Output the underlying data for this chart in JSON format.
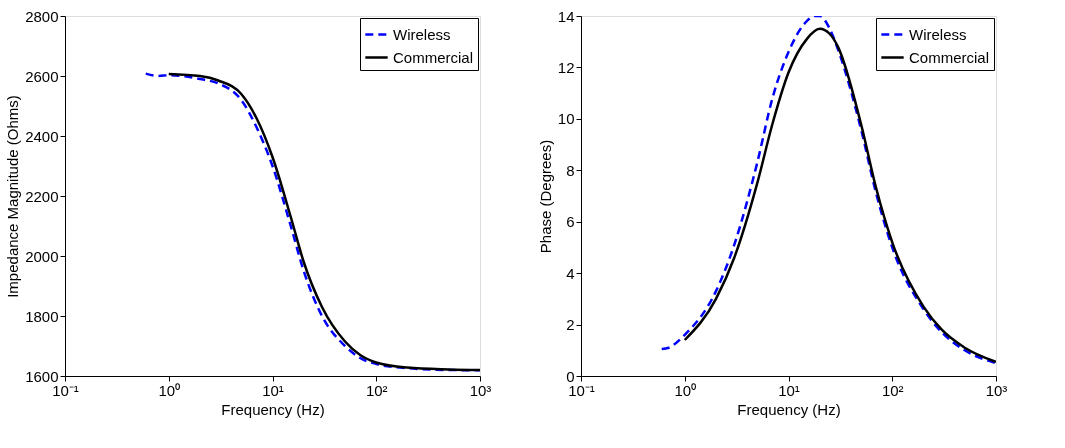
{
  "chart_data": [
    {
      "type": "line",
      "xlabel": "Frequency (Hz)",
      "ylabel": "Impedance Magnitude (Ohms)",
      "log": "x",
      "grid": false,
      "legend": "top right",
      "xlim": [
        0.1,
        1000
      ],
      "ylim": [
        1600,
        2800
      ],
      "xticks": [
        {
          "value": 0.1,
          "label": "10⁻¹"
        },
        {
          "value": 1,
          "label": "10⁰"
        },
        {
          "value": 10,
          "label": "10¹"
        },
        {
          "value": 100,
          "label": "10²"
        },
        {
          "value": 1000,
          "label": "10³"
        }
      ],
      "yticks": [
        1600,
        1800,
        2000,
        2200,
        2400,
        2600,
        2800
      ],
      "series": [
        {
          "name": "Wireless",
          "color": "#0000ff",
          "line_style": "dashed",
          "x": [
            0.6,
            0.8,
            1,
            2,
            3,
            5,
            7,
            10,
            15,
            20,
            30,
            50,
            70,
            100,
            200,
            500,
            1000
          ],
          "values": [
            2608,
            2600,
            2603,
            2590,
            2575,
            2520,
            2430,
            2300,
            2100,
            1950,
            1800,
            1700,
            1660,
            1640,
            1626,
            1620,
            1619
          ]
        },
        {
          "name": "Commercial",
          "color": "#000000",
          "line_style": "solid",
          "x": [
            1,
            2,
            3,
            5,
            7,
            10,
            15,
            20,
            30,
            50,
            70,
            100,
            200,
            500,
            1000
          ],
          "values": [
            2607,
            2600,
            2585,
            2540,
            2460,
            2330,
            2130,
            1980,
            1830,
            1715,
            1670,
            1645,
            1628,
            1622,
            1620
          ]
        }
      ]
    },
    {
      "type": "line",
      "xlabel": "Frequency (Hz)",
      "ylabel": "Phase (Degrees)",
      "log": "x",
      "grid": false,
      "legend": "top right",
      "xlim": [
        0.1,
        1000
      ],
      "ylim": [
        0,
        14
      ],
      "xticks": [
        {
          "value": 0.1,
          "label": "10⁻¹"
        },
        {
          "value": 1,
          "label": "10⁰"
        },
        {
          "value": 10,
          "label": "10¹"
        },
        {
          "value": 100,
          "label": "10²"
        },
        {
          "value": 1000,
          "label": "10³"
        }
      ],
      "yticks": [
        0,
        2,
        4,
        6,
        8,
        10,
        12,
        14
      ],
      "series": [
        {
          "name": "Wireless",
          "color": "#0000ff",
          "line_style": "dashed",
          "x": [
            0.6,
            0.7,
            1,
            2,
            3,
            5,
            7,
            10,
            15,
            18,
            20,
            25,
            30,
            50,
            70,
            100,
            200,
            300,
            500,
            1000
          ],
          "values": [
            1.05,
            1.1,
            1.6,
            3.3,
            5.1,
            8.3,
            10.8,
            12.6,
            13.8,
            14.0,
            14.0,
            13.5,
            12.7,
            9.6,
            7.1,
            5.0,
            2.6,
            1.7,
            1.0,
            0.5
          ]
        },
        {
          "name": "Commercial",
          "color": "#000000",
          "line_style": "solid",
          "x": [
            1,
            2,
            3,
            5,
            7,
            10,
            15,
            20,
            25,
            30,
            50,
            70,
            100,
            200,
            300,
            500,
            1000
          ],
          "values": [
            1.4,
            3.0,
            4.6,
            7.5,
            9.8,
            11.8,
            13.1,
            13.5,
            13.3,
            12.8,
            9.8,
            7.3,
            5.2,
            2.7,
            1.8,
            1.1,
            0.55
          ]
        }
      ]
    }
  ]
}
